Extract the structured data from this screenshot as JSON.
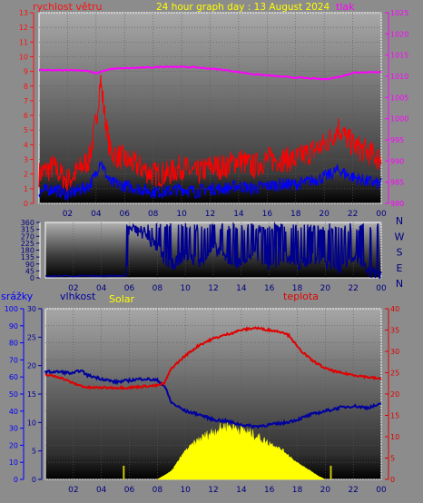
{
  "title": "24 hour graph day : 13 August 2024",
  "colors": {
    "wind": "#ff1010",
    "gust": "#ff0000",
    "wind_avg": "#0000ff",
    "pressure": "#ff00ff",
    "direction": "#000090",
    "humidity": "#0000a0",
    "temperature": "#e00000",
    "solar": "#ffff00",
    "rain": "#0000ff",
    "solar_label": "#ffff00",
    "frame": "#ffffff",
    "title": "#ffff00"
  },
  "chart_data": [
    {
      "type": "line",
      "name": "wind-pressure",
      "labels": {
        "wind": "rychlost větru",
        "pressure": "tlak"
      },
      "x_ticks": [
        "02",
        "04",
        "06",
        "08",
        "10",
        "12",
        "14",
        "16",
        "18",
        "20",
        "22",
        "00"
      ],
      "wind_axis": {
        "ylim": [
          0,
          13
        ],
        "ticks": [
          0,
          1,
          2,
          3,
          4,
          5,
          6,
          7,
          8,
          9,
          10,
          11,
          12,
          13
        ]
      },
      "pressure_axis": {
        "ylim": [
          980,
          1025
        ],
        "ticks": [
          980,
          985,
          990,
          995,
          1000,
          1005,
          1010,
          1015,
          1020,
          1025
        ]
      },
      "series": [
        {
          "key": "pressure",
          "axis": "pressure",
          "x": [
            0,
            1,
            2,
            3,
            3.5,
            4,
            4.5,
            5,
            6,
            7,
            8,
            9,
            10,
            11,
            12,
            13,
            14,
            15,
            16,
            17,
            18,
            19,
            20,
            21,
            22,
            23,
            24
          ],
          "y": [
            1011.5,
            1011.4,
            1011.5,
            1011.4,
            1011.2,
            1010.6,
            1011.3,
            1011.7,
            1011.9,
            1012,
            1012.1,
            1012.3,
            1012.2,
            1012.1,
            1011.8,
            1011.5,
            1011.0,
            1010.5,
            1010.2,
            1009.9,
            1009.7,
            1009.5,
            1009.3,
            1009.8,
            1010.8,
            1011.0,
            1011.0
          ]
        },
        {
          "key": "gust",
          "axis": "wind",
          "x": [
            0,
            1,
            2,
            3,
            3.5,
            4,
            4.3,
            4.6,
            5,
            6,
            7,
            8,
            9,
            10,
            11,
            12,
            13,
            14,
            15,
            16,
            17,
            18,
            19,
            20,
            20.5,
            21,
            21.5,
            22,
            23,
            24
          ],
          "y": [
            2,
            2.5,
            1.5,
            2.5,
            3,
            5.5,
            8.5,
            6,
            3.5,
            3,
            2.5,
            2,
            2,
            2.5,
            2,
            2.5,
            2.5,
            3,
            2.5,
            3,
            3,
            3,
            3.5,
            4,
            4.5,
            5.2,
            4.5,
            4,
            3.5,
            3
          ]
        },
        {
          "key": "wind_avg",
          "axis": "wind",
          "x": [
            0,
            1,
            2,
            3,
            3.5,
            4,
            4.3,
            4.6,
            5,
            6,
            7,
            8,
            9,
            10,
            11,
            12,
            13,
            14,
            15,
            16,
            17,
            18,
            19,
            20,
            20.5,
            21,
            21.5,
            22,
            23,
            24
          ],
          "y": [
            0.8,
            1,
            0.6,
            1.0,
            1.2,
            2.0,
            3.0,
            2.2,
            1.4,
            1.2,
            1,
            0.8,
            0.8,
            1,
            0.8,
            1,
            1,
            1.2,
            1,
            1.2,
            1.3,
            1.3,
            1.5,
            1.8,
            2,
            2.3,
            2,
            1.8,
            1.5,
            1.3
          ]
        }
      ]
    },
    {
      "type": "line",
      "name": "wind-direction",
      "x_ticks": [
        "02",
        "04",
        "06",
        "08",
        "10",
        "12",
        "14",
        "16",
        "18",
        "20",
        "22",
        "00"
      ],
      "ylim": [
        0,
        360
      ],
      "y_ticks": [
        0,
        45,
        90,
        135,
        180,
        225,
        270,
        315,
        360
      ],
      "compass_labels": [
        "N",
        "W",
        "S",
        "E",
        "N"
      ],
      "series": [
        {
          "key": "direction",
          "x": [
            0,
            1,
            2,
            3,
            4,
            5,
            5.8,
            6,
            6.5,
            7,
            7.5,
            8,
            8.5,
            9,
            10,
            11,
            12,
            13,
            14,
            15,
            16,
            17,
            18,
            19,
            20,
            21,
            22,
            23,
            24
          ],
          "y": [
            5,
            8,
            5,
            10,
            5,
            8,
            10,
            330,
            300,
            280,
            240,
            200,
            120,
            80,
            150,
            90,
            200,
            120,
            90,
            160,
            60,
            140,
            80,
            120,
            100,
            60,
            150,
            40,
            20
          ]
        }
      ]
    },
    {
      "type": "line",
      "name": "rain-humidity-temperature-solar",
      "labels": {
        "rain": "srážky",
        "humidity": "vlhkost",
        "solar": "Solar",
        "temperature": "teplota"
      },
      "x_ticks": [
        "02",
        "04",
        "06",
        "08",
        "10",
        "12",
        "14",
        "16",
        "18",
        "20",
        "22",
        "00"
      ],
      "rain_axis": {
        "ylim": [
          0,
          100
        ],
        "ticks": [
          0,
          10,
          20,
          30,
          40,
          50,
          60,
          70,
          80,
          90,
          100
        ]
      },
      "humidity_axis": {
        "ylim": [
          0,
          30
        ],
        "ticks": [
          0,
          5,
          10,
          15,
          20,
          25,
          30
        ]
      },
      "temperature_axis": {
        "ylim": [
          0,
          40
        ],
        "ticks": [
          0,
          5,
          10,
          15,
          20,
          25,
          30,
          35,
          40
        ]
      },
      "series": [
        {
          "key": "humidity",
          "axis": "rain",
          "x": [
            0,
            1,
            2,
            2.5,
            3,
            4,
            5,
            6,
            7,
            8,
            8.5,
            9,
            10,
            11,
            12,
            13,
            14,
            15,
            16,
            17,
            18,
            19,
            20,
            21,
            22,
            23,
            24
          ],
          "y": [
            63,
            63,
            62,
            64,
            61,
            59,
            57,
            58,
            59,
            58,
            55,
            45,
            40,
            38,
            35,
            34,
            32,
            31,
            32,
            33,
            35,
            38,
            40,
            42,
            43,
            42,
            44
          ]
        },
        {
          "key": "temperature",
          "axis": "temperature",
          "x": [
            0,
            1,
            2,
            3,
            4,
            5,
            6,
            7,
            8,
            8.5,
            9,
            10,
            11,
            12,
            13,
            14,
            15,
            16,
            17,
            17.5,
            18,
            19,
            20,
            21,
            22,
            23,
            24
          ],
          "y": [
            24.5,
            24,
            22.5,
            21.5,
            21.5,
            21.5,
            21.5,
            21.8,
            22,
            22.5,
            26,
            29,
            31.5,
            33,
            34,
            35,
            35.5,
            35,
            34.5,
            33.5,
            31,
            28,
            26,
            25,
            24.5,
            24,
            23.5
          ]
        },
        {
          "key": "solar",
          "axis": "temperature",
          "x": [
            8,
            9,
            10,
            11,
            12,
            13,
            14,
            15,
            16,
            17,
            18,
            19,
            19.5,
            20
          ],
          "y": [
            0,
            2,
            7,
            10,
            12,
            13.5,
            12.5,
            11,
            9,
            7,
            4,
            2,
            0.8,
            0
          ]
        },
        {
          "key": "rain_spikes",
          "axis": "rain",
          "x": [
            5.6,
            20.4
          ],
          "y": [
            8,
            8
          ]
        }
      ]
    }
  ]
}
